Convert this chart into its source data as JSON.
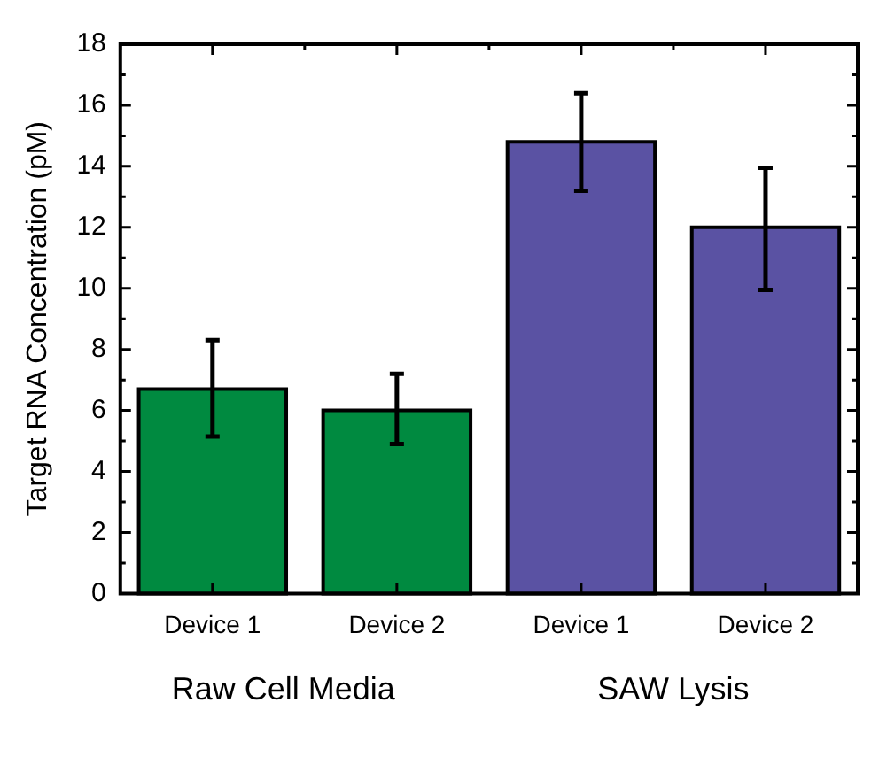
{
  "chart_data": {
    "type": "bar",
    "ylabel": "Target RNA Concentration (pM)",
    "categories": [
      "Device 1",
      "Device 2",
      "Device 1",
      "Device 2"
    ],
    "values": [
      6.7,
      6.0,
      14.8,
      12.0
    ],
    "colors": [
      "#008a40",
      "#008a40",
      "#5a52a3",
      "#5a52a3"
    ],
    "errors": [
      [
        5.15,
        8.3
      ],
      [
        4.9,
        7.2
      ],
      [
        13.2,
        16.4
      ],
      [
        9.95,
        13.95
      ]
    ],
    "ylim": [
      0,
      18
    ],
    "yticks": [
      0,
      2,
      4,
      6,
      8,
      10,
      12,
      14,
      16,
      18
    ],
    "annotations": [
      "Raw Cell Media",
      "SAW Lysis"
    ],
    "grid": false,
    "legend": false
  }
}
